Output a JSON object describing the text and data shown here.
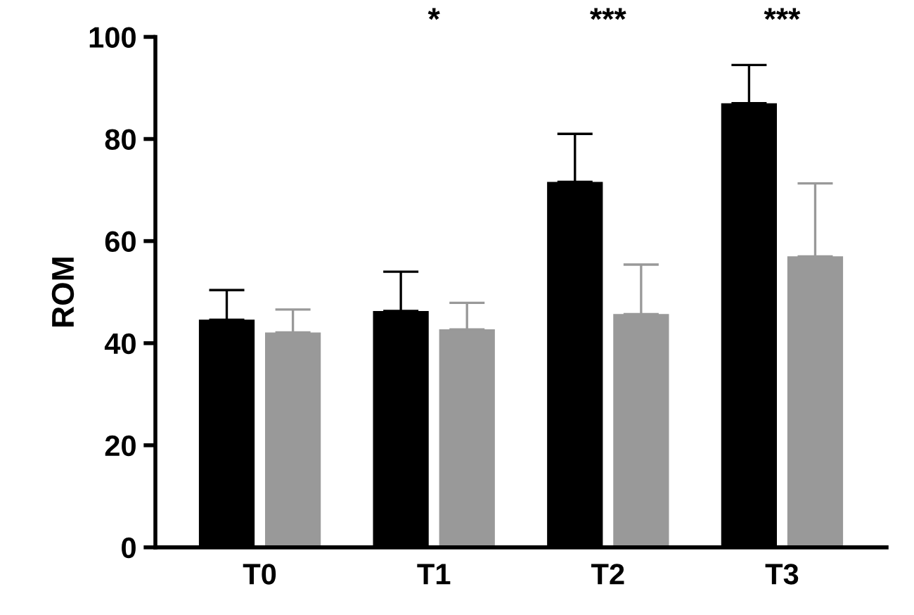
{
  "chart_data": {
    "type": "bar",
    "ylabel": "ROM",
    "categories": [
      "T0",
      "T1",
      "T2",
      "T3"
    ],
    "series": [
      {
        "color": "#000000",
        "values": [
          44.6,
          46.3,
          71.6,
          87.0
        ],
        "errors": [
          [
            44.6,
            50.4
          ],
          [
            46.3,
            54.0
          ],
          [
            71.6,
            81.0
          ],
          [
            87.0,
            94.5
          ]
        ]
      },
      {
        "color": "#999999",
        "values": [
          42.1,
          42.7,
          45.7,
          57.0
        ],
        "errors": [
          [
            42.1,
            46.6
          ],
          [
            42.7,
            47.9
          ],
          [
            45.7,
            55.4
          ],
          [
            57.0,
            71.3
          ]
        ]
      }
    ],
    "ylim": [
      0,
      100
    ],
    "yticks": [
      0,
      20,
      40,
      60,
      80,
      100
    ],
    "grid": false,
    "legend": false,
    "annotations": [
      "*",
      "***",
      "***"
    ]
  }
}
